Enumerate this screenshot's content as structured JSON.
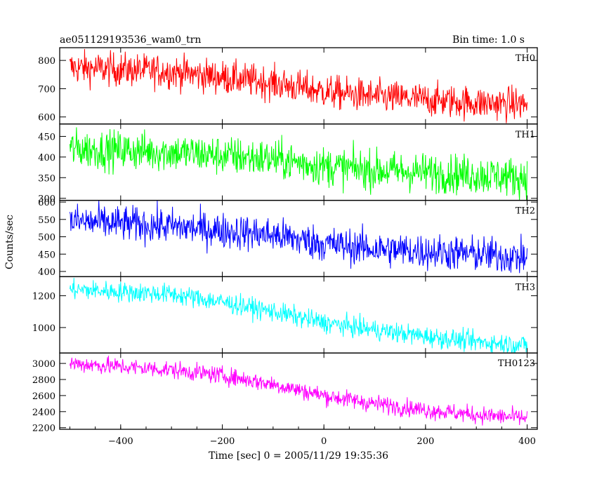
{
  "header": {
    "title": "ae051129193536_wam0_trn",
    "bin_time": "Bin time: 1.0 s"
  },
  "chart_data": {
    "type": "line",
    "title": "ae051129193536_wam0_trn",
    "xlabel": "Time [sec] 0 = 2005/11/29 19:35:36",
    "ylabel": "Counts/sec",
    "xlim": [
      -520,
      420
    ],
    "x_ticks": [
      -400,
      -200,
      0,
      200,
      400
    ],
    "x_tick_labels": [
      "−400",
      "−200",
      "0",
      "200",
      "400"
    ],
    "x_range_data": [
      -500,
      400
    ],
    "bin_time_sec": 1.0,
    "grid": false,
    "panels": [
      {
        "label": "TH0",
        "color": "#ff0000",
        "ylim": [
          575,
          845
        ],
        "y_ticks": [
          600,
          700,
          800
        ],
        "trend": {
          "x": [
            -500,
            -300,
            -100,
            0,
            100,
            300,
            400
          ],
          "y": [
            775,
            760,
            720,
            690,
            672,
            650,
            645
          ]
        },
        "noise_amplitude": 30
      },
      {
        "label": "TH1",
        "color": "#00ff00",
        "ylim": [
          295,
          480
        ],
        "y_ticks": [
          300,
          350,
          400,
          450
        ],
        "trend": {
          "x": [
            -500,
            -300,
            -100,
            0,
            100,
            300,
            400
          ],
          "y": [
            420,
            412,
            395,
            378,
            368,
            357,
            350
          ]
        },
        "noise_amplitude": 24
      },
      {
        "label": "TH2",
        "color": "#0000ff",
        "ylim": [
          385,
          605
        ],
        "y_ticks": [
          400,
          450,
          500,
          550,
          600
        ],
        "trend": {
          "x": [
            -500,
            -300,
            -100,
            0,
            100,
            300,
            400
          ],
          "y": [
            545,
            530,
            505,
            480,
            465,
            450,
            440
          ]
        },
        "noise_amplitude": 26
      },
      {
        "label": "TH3",
        "color": "#00ffff",
        "ylim": [
          840,
          1320
        ],
        "y_ticks": [
          1000,
          1200
        ],
        "trend": {
          "x": [
            -500,
            -300,
            -200,
            -100,
            0,
            100,
            200,
            300,
            400
          ],
          "y": [
            1240,
            1210,
            1160,
            1100,
            1030,
            985,
            945,
            910,
            890
          ]
        },
        "noise_amplitude": 32
      },
      {
        "label": "TH0123",
        "color": "#ff00ff",
        "ylim": [
          2180,
          3130
        ],
        "y_ticks": [
          2200,
          2400,
          2600,
          2800,
          3000
        ],
        "y_tick_labels": [
          "2200",
          "2400",
          "2600",
          "2800",
          "3000"
        ],
        "trend": {
          "x": [
            -500,
            -300,
            -200,
            -100,
            0,
            100,
            200,
            300,
            400
          ],
          "y": [
            3000,
            2920,
            2850,
            2740,
            2600,
            2500,
            2420,
            2360,
            2320
          ]
        },
        "noise_amplitude": 55
      }
    ]
  }
}
